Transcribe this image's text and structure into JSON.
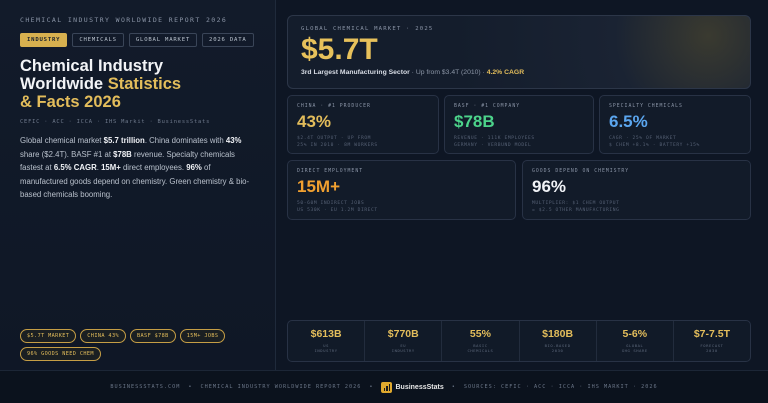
{
  "header": {
    "eyebrow": "CHEMICAL INDUSTRY WORLDWIDE REPORT 2026",
    "tags": [
      "INDUSTRY",
      "CHEMICALS",
      "GLOBAL MARKET",
      "2026 DATA"
    ],
    "title_line1": "Chemical Industry",
    "title_line2a": "Worldwide ",
    "title_line2b": "Statistics",
    "title_line3": "& Facts 2026",
    "sources": "CEFIC · ACC · ICCA · IHS Markit · BusinessStats"
  },
  "description": {
    "p1": "Global chemical market ",
    "b1": "$5.7 trillion",
    "p2": ". China dominates with ",
    "b2": "43%",
    "p3": " share ($2.4T). BASF #1 at ",
    "b3": "$78B",
    "p4": " revenue. Specialty chemicals fastest at ",
    "b4": "6.5% CAGR",
    "p5": ". ",
    "b5": "15M+",
    "p6": " direct employees. ",
    "b6": "96%",
    "p7": " of manufactured goods depend on chemistry. Green chemistry & bio-based chemicals booming."
  },
  "chips": [
    "$5.7T MARKET",
    "CHINA 43%",
    "BASF $78B",
    "15M+ JOBS",
    "96% GOODS NEED CHEM"
  ],
  "hero": {
    "eyebrow": "GLOBAL CHEMICAL MARKET · 2025",
    "value": "$5.7T",
    "sub_bold": "3rd Largest Manufacturing Sector",
    "sub_mid": " · Up from $3.4T (2010) · ",
    "sub_cagr": "4.2% CAGR"
  },
  "cards": [
    {
      "eyebrow": "CHINA · #1 PRODUCER",
      "value": "43%",
      "note1": "$2.4T OUTPUT · UP FROM",
      "note2": "25% IN 2010 · 8M WORKERS",
      "color": "#e3bd5b"
    },
    {
      "eyebrow": "BASF · #1 COMPANY",
      "value": "$78B",
      "note1": "REVENUE · 111K EMPLOYEES",
      "note2": "GERMANY · VERBUND MODEL",
      "color": "#4cd38a"
    },
    {
      "eyebrow": "SPECIALTY CHEMICALS",
      "value": "6.5%",
      "note1": "CAGR · 25% OF MARKET",
      "note2": "$ CHEM +8.1% · BATTERY +15%",
      "color": "#5ba6ef"
    },
    {
      "eyebrow": "DIRECT EMPLOYMENT",
      "value": "15M+",
      "note1": "50-60M INDIRECT JOBS",
      "note2": "US 530K · EU 1.2M DIRECT",
      "color": "#f0a030"
    },
    {
      "eyebrow": "GOODS DEPEND ON CHEMISTRY",
      "value": "96%",
      "note1": "MULTIPLIER: $1 CHEM OUTPUT",
      "note2": "= $2.5 OTHER MANUFACTURING",
      "color": "#f1f3f7"
    }
  ],
  "stats": [
    {
      "value": "$613B",
      "label1": "US",
      "label2": "INDUSTRY"
    },
    {
      "value": "$770B",
      "label1": "EU",
      "label2": "INDUSTRY"
    },
    {
      "value": "55%",
      "label1": "BASIC",
      "label2": "CHEMICALS"
    },
    {
      "value": "$180B",
      "label1": "BIO-BASED",
      "label2": "2030"
    },
    {
      "value": "5-6%",
      "label1": "GLOBAL",
      "label2": "GHG SHARE"
    },
    {
      "value": "$7-7.5T",
      "label1": "FORECAST",
      "label2": "2030"
    }
  ],
  "footer": {
    "site": "BUSINESSSTATS.COM",
    "report": "CHEMICAL INDUSTRY WORLDWIDE REPORT 2026",
    "logo_text": "BusinessStats",
    "sources": "SOURCES: CEFIC · ACC · ICCA · IHS MARKIT · 2026",
    "sep": "•"
  }
}
